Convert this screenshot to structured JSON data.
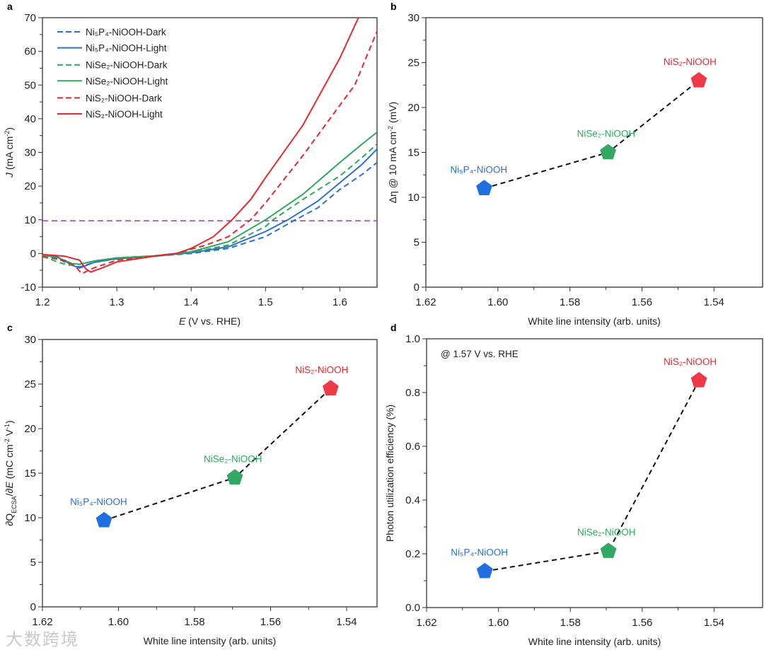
{
  "watermark": "大数跨境",
  "colors": {
    "blue": "#2a6fd6",
    "green": "#2ea85a",
    "red": "#e8262e",
    "ref": "#8a3fc0",
    "marker_blue": "#1f6fe0",
    "marker_green": "#33a865",
    "marker_red": "#ee3a46"
  },
  "chart_data": [
    {
      "panel": "a",
      "type": "line",
      "xlabel": [
        {
          "t": "E",
          "i": true
        },
        {
          "t": " (V vs. RHE)"
        }
      ],
      "ylabel": [
        {
          "t": "J",
          "i": true
        },
        {
          "t": " (mA cm"
        },
        {
          "t": "-2",
          "sup": true
        },
        {
          "t": ")"
        }
      ],
      "xlim": [
        1.2,
        1.65
      ],
      "ylim": [
        -10,
        70
      ],
      "xticks": [
        1.2,
        1.3,
        1.4,
        1.5,
        1.6
      ],
      "xtick_labels": [
        "1.2",
        "1.3",
        "1.4",
        "1.5",
        "1.6"
      ],
      "yticks": [
        -10,
        0,
        10,
        20,
        30,
        40,
        50,
        60,
        70
      ],
      "ytick_labels": [
        "-10",
        "0",
        "10",
        "20",
        "30",
        "40",
        "50",
        "60",
        "70"
      ],
      "reference_line": {
        "y": 9.7,
        "color": "#8a3fc0",
        "style": "dashed"
      },
      "legend_position": "top-left",
      "series": [
        {
          "name": "Ni₅P₄-NiOOH-Dark",
          "color": "blue",
          "dash": true,
          "points": [
            [
              1.2,
              -0.5
            ],
            [
              1.22,
              -1.5
            ],
            [
              1.24,
              -3.5
            ],
            [
              1.25,
              -4
            ],
            [
              1.27,
              -2.6
            ],
            [
              1.3,
              -1.6
            ],
            [
              1.35,
              -0.8
            ],
            [
              1.4,
              0
            ],
            [
              1.45,
              1.5
            ],
            [
              1.5,
              5
            ],
            [
              1.54,
              10
            ],
            [
              1.57,
              13.5
            ],
            [
              1.6,
              19
            ],
            [
              1.63,
              23.5
            ],
            [
              1.65,
              27
            ]
          ]
        },
        {
          "name": "Ni₅P₄-NiOOH-Light",
          "color": "blue",
          "dash": false,
          "points": [
            [
              1.2,
              -0.4
            ],
            [
              1.22,
              -1
            ],
            [
              1.24,
              -3.5
            ],
            [
              1.25,
              -4.3
            ],
            [
              1.27,
              -2.6
            ],
            [
              1.3,
              -1.5
            ],
            [
              1.35,
              -0.8
            ],
            [
              1.4,
              0.2
            ],
            [
              1.45,
              2
            ],
            [
              1.5,
              6.5
            ],
            [
              1.53,
              10
            ],
            [
              1.57,
              15.5
            ],
            [
              1.6,
              21
            ],
            [
              1.63,
              26.5
            ],
            [
              1.65,
              31
            ]
          ]
        },
        {
          "name": "NiSe₂-NiOOH-Dark",
          "color": "green",
          "dash": true,
          "points": [
            [
              1.2,
              -0.8
            ],
            [
              1.22,
              -2.5
            ],
            [
              1.235,
              -3.5
            ],
            [
              1.25,
              -3.2
            ],
            [
              1.27,
              -2.2
            ],
            [
              1.3,
              -1.3
            ],
            [
              1.35,
              -0.7
            ],
            [
              1.4,
              0.3
            ],
            [
              1.45,
              2.5
            ],
            [
              1.5,
              8
            ],
            [
              1.51,
              10
            ],
            [
              1.55,
              16
            ],
            [
              1.6,
              23
            ],
            [
              1.63,
              28.5
            ],
            [
              1.65,
              32.5
            ]
          ]
        },
        {
          "name": "NiSe₂-NiOOH-Light",
          "color": "green",
          "dash": false,
          "points": [
            [
              1.2,
              -0.5
            ],
            [
              1.22,
              -1.2
            ],
            [
              1.24,
              -3
            ],
            [
              1.25,
              -3.2
            ],
            [
              1.27,
              -2.2
            ],
            [
              1.3,
              -1.3
            ],
            [
              1.35,
              -0.7
            ],
            [
              1.4,
              0.5
            ],
            [
              1.45,
              3.5
            ],
            [
              1.5,
              10
            ],
            [
              1.55,
              17.5
            ],
            [
              1.6,
              27
            ],
            [
              1.63,
              32.5
            ],
            [
              1.65,
              36
            ]
          ]
        },
        {
          "name": "NiS₂-NiOOH-Dark",
          "color": "red",
          "dash": true,
          "points": [
            [
              1.2,
              -1
            ],
            [
              1.23,
              -2
            ],
            [
              1.245,
              -4
            ],
            [
              1.253,
              -6
            ],
            [
              1.27,
              -4.2
            ],
            [
              1.3,
              -2
            ],
            [
              1.35,
              -0.8
            ],
            [
              1.38,
              0
            ],
            [
              1.42,
              2.5
            ],
            [
              1.45,
              5
            ],
            [
              1.48,
              10
            ],
            [
              1.5,
              15
            ],
            [
              1.55,
              29
            ],
            [
              1.6,
              44
            ],
            [
              1.62,
              50
            ],
            [
              1.65,
              66
            ]
          ]
        },
        {
          "name": "NiS₂-NiOOH-Light",
          "color": "red",
          "dash": false,
          "points": [
            [
              1.2,
              -0.3
            ],
            [
              1.23,
              -0.8
            ],
            [
              1.25,
              -2
            ],
            [
              1.258,
              -4.5
            ],
            [
              1.265,
              -5.5
            ],
            [
              1.28,
              -4.3
            ],
            [
              1.3,
              -2.5
            ],
            [
              1.35,
              -0.8
            ],
            [
              1.38,
              0
            ],
            [
              1.4,
              1.5
            ],
            [
              1.43,
              5
            ],
            [
              1.455,
              10
            ],
            [
              1.48,
              16
            ],
            [
              1.5,
              22.5
            ],
            [
              1.55,
              38
            ],
            [
              1.6,
              58
            ],
            [
              1.625,
              70
            ]
          ]
        }
      ]
    },
    {
      "panel": "b",
      "type": "scatter",
      "xlabel": [
        {
          "t": "White line intensity (arb. units)"
        }
      ],
      "ylabel": [
        {
          "t": "Δη @ 10 mA cm"
        },
        {
          "t": "-2",
          "sup": true
        },
        {
          "t": " (mV)"
        }
      ],
      "xlim": [
        1.62,
        1.5265
      ],
      "ylim": [
        0,
        30
      ],
      "xticks": [
        1.62,
        1.6,
        1.58,
        1.56,
        1.54
      ],
      "xtick_labels": [
        "1.62",
        "1.60",
        "1.58",
        "1.56",
        "1.54"
      ],
      "yticks": [
        0,
        5,
        10,
        15,
        20,
        25,
        30
      ],
      "ytick_labels": [
        "0",
        "5",
        "10",
        "15",
        "20",
        "25",
        "30"
      ],
      "points": [
        {
          "label": "Ni₅P₄-NiOOH",
          "x": 1.6038,
          "y": 11,
          "color": "blue"
        },
        {
          "label": "NiSe₂-NiOOH",
          "x": 1.5694,
          "y": 15,
          "color": "green"
        },
        {
          "label": "NiS₂-NiOOH",
          "x": 1.5442,
          "y": 23,
          "color": "red"
        }
      ]
    },
    {
      "panel": "c",
      "type": "scatter",
      "xlabel": [
        {
          "t": "White line intensity (arb. units)"
        }
      ],
      "ylabel": [
        {
          "t": "∂Q"
        },
        {
          "t": "ECSA",
          "sub": true
        },
        {
          "t": "/∂"
        },
        {
          "t": "E",
          "i": true
        },
        {
          "t": " (mC cm"
        },
        {
          "t": "-2",
          "sup": true
        },
        {
          "t": " V"
        },
        {
          "t": "-1",
          "sup": true
        },
        {
          "t": ")"
        }
      ],
      "xlim": [
        1.62,
        1.532
      ],
      "ylim": [
        0,
        30
      ],
      "xticks": [
        1.62,
        1.6,
        1.58,
        1.56,
        1.54
      ],
      "xtick_labels": [
        "1.62",
        "1.60",
        "1.58",
        "1.56",
        "1.54"
      ],
      "yticks": [
        0,
        5,
        10,
        15,
        20,
        25,
        30
      ],
      "ytick_labels": [
        "0",
        "5",
        "10",
        "15",
        "20",
        "25",
        "30"
      ],
      "points": [
        {
          "label": "Ni₅P₄-NiOOH",
          "x": 1.6038,
          "y": 9.7,
          "color": "blue"
        },
        {
          "label": "NiSe₂-NiOOH",
          "x": 1.5694,
          "y": 14.5,
          "color": "green"
        },
        {
          "label": "NiS₂-NiOOH",
          "x": 1.5442,
          "y": 24.5,
          "color": "red"
        }
      ]
    },
    {
      "panel": "d",
      "type": "scatter",
      "xlabel": [
        {
          "t": "White line intensity (arb. units)"
        }
      ],
      "ylabel": [
        {
          "t": "Photon utilization efficiency (%)"
        }
      ],
      "annotation": "@ 1.57 V vs. RHE",
      "xlim": [
        1.62,
        1.5265
      ],
      "ylim": [
        0,
        1.0
      ],
      "xticks": [
        1.62,
        1.6,
        1.58,
        1.56,
        1.54
      ],
      "xtick_labels": [
        "1.62",
        "1.60",
        "1.58",
        "1.56",
        "1.54"
      ],
      "yticks": [
        0,
        0.2,
        0.4,
        0.6,
        0.8,
        1.0
      ],
      "ytick_labels": [
        "0.0",
        "0.2",
        "0.4",
        "0.6",
        "0.8",
        "1.0"
      ],
      "points": [
        {
          "label": "Ni₅P₄-NiOOH",
          "x": 1.6038,
          "y": 0.135,
          "color": "blue"
        },
        {
          "label": "NiSe₂-NiOOH",
          "x": 1.5694,
          "y": 0.21,
          "color": "green"
        },
        {
          "label": "NiS₂-NiOOH",
          "x": 1.5442,
          "y": 0.845,
          "color": "red"
        }
      ]
    }
  ]
}
